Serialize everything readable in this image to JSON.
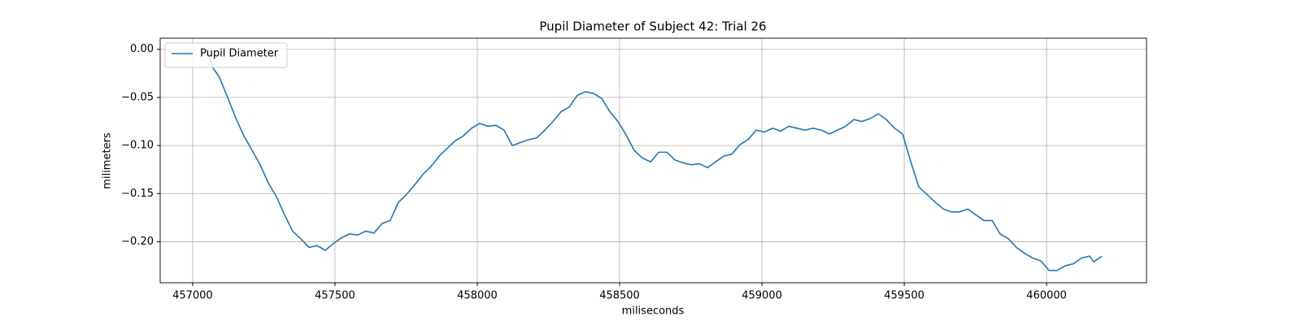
{
  "chart_data": {
    "type": "line",
    "title": "Pupil Diameter of Subject 42: Trial 26",
    "xlabel": "miliseconds",
    "ylabel": "milimeters",
    "x": [
      457051,
      457071,
      457094,
      457123,
      457151,
      457180,
      457209,
      457237,
      457266,
      457294,
      457323,
      457351,
      457380,
      457409,
      457437,
      457466,
      457494,
      457523,
      457551,
      457580,
      457609,
      457637,
      457666,
      457694,
      457723,
      457751,
      457780,
      457809,
      457837,
      457866,
      457894,
      457923,
      457951,
      457980,
      458009,
      458037,
      458066,
      458094,
      458123,
      458151,
      458180,
      458209,
      458237,
      458266,
      458294,
      458323,
      458351,
      458380,
      458409,
      458437,
      458466,
      458494,
      458523,
      458551,
      458580,
      458609,
      458637,
      458666,
      458694,
      458723,
      458751,
      458780,
      458809,
      458837,
      458866,
      458894,
      458923,
      458951,
      458980,
      459009,
      459037,
      459066,
      459094,
      459123,
      459151,
      459180,
      459209,
      459237,
      459266,
      459294,
      459323,
      459351,
      459380,
      459409,
      459437,
      459466,
      459494,
      459523,
      459551,
      459580,
      459609,
      459637,
      459666,
      459694,
      459723,
      459751,
      459780,
      459809,
      459837,
      459866,
      459894,
      459923,
      459951,
      459980,
      460009,
      460037,
      460066,
      460094,
      460123,
      460151,
      460166,
      460194
    ],
    "series": [
      {
        "name": "Pupil Diameter",
        "color": "#1f77b4",
        "values": [
          0.0,
          -0.019,
          -0.029,
          -0.05,
          -0.071,
          -0.09,
          -0.105,
          -0.12,
          -0.139,
          -0.153,
          -0.172,
          -0.189,
          -0.197,
          -0.206,
          -0.204,
          -0.209,
          -0.202,
          -0.196,
          -0.192,
          -0.193,
          -0.189,
          -0.191,
          -0.181,
          -0.178,
          -0.159,
          -0.151,
          -0.141,
          -0.13,
          -0.122,
          -0.111,
          -0.103,
          -0.095,
          -0.09,
          -0.082,
          -0.077,
          -0.08,
          -0.079,
          -0.084,
          -0.1,
          -0.097,
          -0.094,
          -0.092,
          -0.084,
          -0.075,
          -0.065,
          -0.06,
          -0.048,
          -0.044,
          -0.046,
          -0.051,
          -0.065,
          -0.075,
          -0.089,
          -0.105,
          -0.113,
          -0.117,
          -0.107,
          -0.107,
          -0.115,
          -0.118,
          -0.12,
          -0.119,
          -0.123,
          -0.117,
          -0.111,
          -0.109,
          -0.099,
          -0.094,
          -0.084,
          -0.086,
          -0.082,
          -0.085,
          -0.08,
          -0.082,
          -0.084,
          -0.082,
          -0.084,
          -0.088,
          -0.084,
          -0.08,
          -0.073,
          -0.075,
          -0.072,
          -0.067,
          -0.073,
          -0.082,
          -0.088,
          -0.117,
          -0.143,
          -0.151,
          -0.159,
          -0.166,
          -0.169,
          -0.169,
          -0.166,
          -0.172,
          -0.178,
          -0.178,
          -0.192,
          -0.197,
          -0.206,
          -0.212,
          -0.217,
          -0.22,
          -0.23,
          -0.23,
          -0.225,
          -0.223,
          -0.217,
          -0.215,
          -0.221,
          -0.215
        ]
      }
    ],
    "xlim": [
      456886,
      460351
    ],
    "ylim": [
      -0.2427,
      0.0116
    ],
    "xticks": [
      457000,
      457500,
      458000,
      458500,
      459000,
      459500,
      460000
    ],
    "yticks": [
      {
        "value": 0,
        "label": "0.00"
      },
      {
        "value": -0.05,
        "label": "−0.05"
      },
      {
        "value": -0.1,
        "label": "−0.10"
      },
      {
        "value": -0.15,
        "label": "−0.15"
      },
      {
        "value": -0.2,
        "label": "−0.20"
      }
    ],
    "grid": true,
    "legend": "upper left"
  }
}
